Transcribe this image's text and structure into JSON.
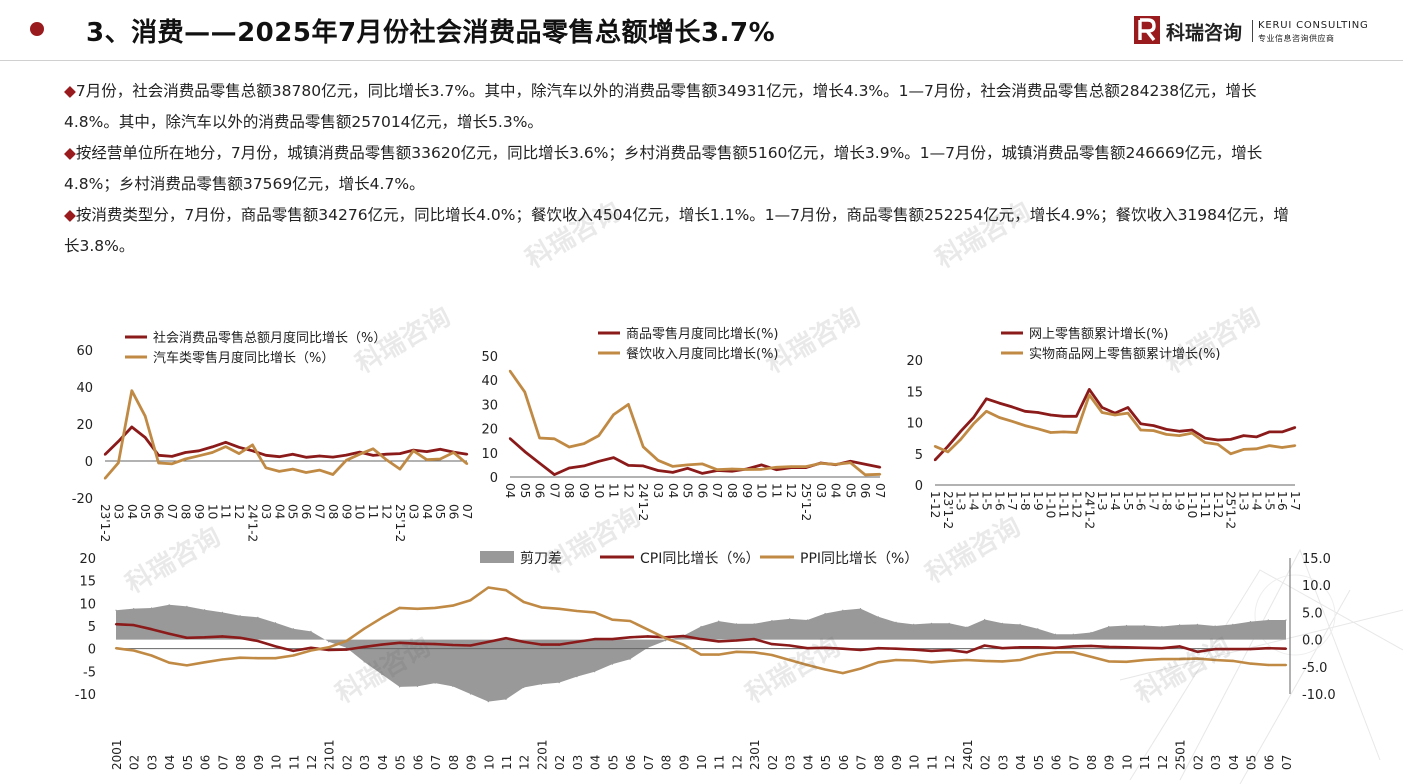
{
  "header": {
    "title": "3、消费——2025年7月份社会消费品零售总额增长3.7%",
    "brand_cn": "科瑞咨询",
    "brand_en": "KERUI CONSULTING",
    "brand_tagline": "专业信息咨询供应商",
    "accent_color": "#9a1b1e"
  },
  "watermark": {
    "text": "科瑞咨询"
  },
  "bullets": [
    {
      "marker": "◆",
      "text": "7月份，社会消费品零售总额38780亿元，同比增长3.7%。其中，除汽车以外的消费品零售额34931亿元，增长4.3%。1—7月份，社会消费品零售总额284238亿元，增长4.8%。其中，除汽车以外的消费品零售额257014亿元，增长5.3%。"
    },
    {
      "marker": "◆",
      "text": "按经营单位所在地分，7月份，城镇消费品零售额33620亿元，同比增长3.6%；乡村消费品零售额5160亿元，增长3.9%。1—7月份，城镇消费品零售额246669亿元，增长4.8%；乡村消费品零售额37569亿元，增长4.7%。"
    },
    {
      "marker": "◆",
      "text": "按消费类型分，7月份，商品零售额34276亿元，同比增长4.0%；餐饮收入4504亿元，增长1.1%。1—7月份，商品零售额252254亿元，增长4.9%；餐饮收入31984亿元，增长3.8%。"
    }
  ],
  "chart_data": [
    {
      "type": "line",
      "categories": [
        "23'1-2",
        "03",
        "04",
        "05",
        "06",
        "07",
        "08",
        "09",
        "10",
        "11",
        "12",
        "24'1-2",
        "03",
        "04",
        "05",
        "06",
        "07",
        "08",
        "09",
        "10",
        "11",
        "12",
        "25'1-2",
        "03",
        "04",
        "05",
        "06",
        "07"
      ],
      "series": [
        {
          "name": "社会消费品零售总额月度同比增长（%）",
          "color": "#8b1a1a",
          "values": [
            3.5,
            10.6,
            18.4,
            12.7,
            3.1,
            2.5,
            4.6,
            5.5,
            7.6,
            10.1,
            7.4,
            5.5,
            3.1,
            2.3,
            3.7,
            2.0,
            2.7,
            2.1,
            3.2,
            4.8,
            3.0,
            3.7,
            4.0,
            5.9,
            5.1,
            6.4,
            4.8,
            3.7
          ]
        },
        {
          "name": "汽车类零售月度同比增长（%）",
          "color": "#c08a45",
          "values": [
            -9.4,
            -1.0,
            38.0,
            24.2,
            -1.1,
            -1.5,
            1.1,
            2.8,
            4.6,
            7.8,
            4.0,
            8.7,
            -3.7,
            -5.6,
            -4.4,
            -6.2,
            -4.9,
            -7.3,
            0.4,
            3.7,
            6.6,
            0.6,
            -4.4,
            5.5,
            0.7,
            1.1,
            4.6,
            -1.5
          ]
        }
      ],
      "yticks": [
        "60",
        "40",
        "20",
        "0",
        "-20"
      ],
      "ylim": [
        -20,
        60
      ]
    },
    {
      "type": "line",
      "categories": [
        "04",
        "05",
        "06",
        "07",
        "08",
        "09",
        "10",
        "11",
        "12",
        "24'1-2",
        "03",
        "04",
        "05",
        "06",
        "07",
        "08",
        "09",
        "10",
        "11",
        "12",
        "25'1-2",
        "03",
        "04",
        "05",
        "06",
        "07"
      ],
      "series": [
        {
          "name": "商品零售月度同比增长(%)",
          "color": "#8b1a1a",
          "values": [
            15.9,
            10.5,
            5.7,
            1.0,
            3.7,
            4.6,
            6.5,
            8.0,
            4.8,
            4.6,
            2.7,
            1.9,
            3.6,
            1.5,
            2.7,
            2.4,
            3.3,
            5.0,
            3.0,
            3.9,
            3.9,
            5.8,
            5.1,
            6.5,
            5.3,
            4.0
          ]
        },
        {
          "name": "餐饮收入月度同比增长(%)",
          "color": "#c08a45",
          "values": [
            43.8,
            35.1,
            16.1,
            15.8,
            12.4,
            13.8,
            17.1,
            25.8,
            30.0,
            12.5,
            6.9,
            4.4,
            5.0,
            5.4,
            3.0,
            3.3,
            3.1,
            3.2,
            4.0,
            4.3,
            4.3,
            5.6,
            5.2,
            5.9,
            0.9,
            1.1
          ]
        }
      ],
      "yticks": [
        "50",
        "40",
        "30",
        "20",
        "10",
        "0"
      ],
      "ylim": [
        0,
        50
      ]
    },
    {
      "type": "line",
      "categories": [
        "1-12",
        "23'1-2",
        "1-3",
        "1-4",
        "1-5",
        "1-6",
        "1-7",
        "1-8",
        "1-9",
        "1-10",
        "1-11",
        "1-12",
        "24'1-2",
        "1-3",
        "1-4",
        "1-5",
        "1-6",
        "1-7",
        "1-8",
        "1-9",
        "1-10",
        "1-11",
        "1-12",
        "25'1-2",
        "1-3",
        "1-4",
        "1-5",
        "1-6",
        "1-7"
      ],
      "series": [
        {
          "name": "网上零售额累计增长(%)",
          "color": "#8b1a1a",
          "values": [
            4.0,
            6.2,
            8.6,
            10.8,
            13.8,
            13.1,
            12.5,
            11.8,
            11.6,
            11.2,
            11.0,
            11.0,
            15.3,
            12.4,
            11.5,
            12.4,
            9.8,
            9.5,
            8.9,
            8.6,
            8.8,
            7.5,
            7.2,
            7.3,
            7.9,
            7.7,
            8.5,
            8.5,
            9.2
          ]
        },
        {
          "name": "实物商品网上零售额累计增长(%)",
          "color": "#c08a45",
          "values": [
            6.2,
            5.3,
            7.3,
            9.8,
            11.8,
            10.8,
            10.2,
            9.5,
            9.0,
            8.4,
            8.5,
            8.4,
            14.4,
            11.6,
            11.2,
            11.5,
            8.8,
            8.7,
            8.1,
            7.9,
            8.3,
            6.8,
            6.5,
            5.0,
            5.7,
            5.8,
            6.3,
            6.0,
            6.3
          ]
        }
      ],
      "yticks": [
        "20",
        "15",
        "10",
        "5",
        "0"
      ],
      "ylim": [
        0,
        20
      ]
    },
    {
      "type": "line",
      "categories": [
        "2001",
        "02",
        "03",
        "04",
        "05",
        "06",
        "07",
        "08",
        "09",
        "10",
        "11",
        "12",
        "2101",
        "02",
        "03",
        "04",
        "05",
        "06",
        "07",
        "08",
        "09",
        "10",
        "11",
        "12",
        "2201",
        "02",
        "03",
        "04",
        "05",
        "06",
        "07",
        "08",
        "09",
        "10",
        "11",
        "12",
        "2301",
        "02",
        "03",
        "04",
        "05",
        "06",
        "07",
        "08",
        "09",
        "10",
        "11",
        "12",
        "2401",
        "02",
        "03",
        "04",
        "05",
        "06",
        "07",
        "08",
        "09",
        "10",
        "11",
        "12",
        "2501",
        "02",
        "03",
        "04",
        "05",
        "06",
        "07"
      ],
      "series": [
        {
          "name": "剪刀差",
          "color": "#999999",
          "kind": "area",
          "values": [
            5.4,
            5.7,
            5.8,
            6.4,
            6.1,
            5.5,
            5.0,
            4.4,
            4.1,
            3.1,
            2.0,
            1.5,
            -0.4,
            -1.5,
            -4.1,
            -6.4,
            -8.7,
            -8.6,
            -8.0,
            -8.6,
            -10.0,
            -11.4,
            -11.0,
            -8.8,
            -8.2,
            -7.9,
            -6.8,
            -5.9,
            -4.5,
            -3.6,
            -1.5,
            -0.2,
            0.7,
            2.4,
            3.4,
            2.9,
            2.9,
            3.5,
            3.8,
            3.6,
            4.8,
            5.4,
            5.7,
            4.2,
            3.2,
            2.8,
            3.0,
            3.0,
            2.3,
            3.7,
            3.0,
            2.8,
            2.0,
            1.0,
            1.0,
            1.3,
            2.4,
            2.6,
            2.6,
            2.4,
            2.7,
            2.8,
            2.5,
            2.8,
            3.3,
            3.6,
            3.6
          ]
        },
        {
          "name": "CPI同比增长（%）",
          "color": "#8b1a1a",
          "values": [
            5.4,
            5.2,
            4.3,
            3.3,
            2.4,
            2.5,
            2.7,
            2.4,
            1.7,
            0.5,
            -0.5,
            0.2,
            -0.3,
            -0.2,
            0.4,
            0.9,
            1.3,
            1.1,
            1.0,
            0.8,
            0.7,
            1.5,
            2.3,
            1.5,
            0.9,
            0.9,
            1.5,
            2.1,
            2.1,
            2.5,
            2.7,
            2.5,
            2.8,
            2.1,
            1.6,
            1.8,
            2.1,
            1.0,
            0.7,
            0.1,
            0.2,
            0.0,
            -0.3,
            0.1,
            0.0,
            -0.2,
            -0.5,
            -0.3,
            -0.8,
            0.7,
            0.1,
            0.3,
            0.3,
            0.2,
            0.5,
            0.6,
            0.4,
            0.3,
            0.2,
            0.1,
            0.5,
            -0.7,
            -0.1,
            -0.1,
            -0.1,
            0.1,
            0.0
          ]
        },
        {
          "name": "PPI同比增长（%）",
          "color": "#c08a45",
          "values": [
            0.1,
            -0.4,
            -1.5,
            -3.1,
            -3.7,
            -3.0,
            -2.4,
            -2.0,
            -2.1,
            -2.1,
            -1.5,
            -0.4,
            0.3,
            1.7,
            4.4,
            6.8,
            9.0,
            8.8,
            9.0,
            9.5,
            10.7,
            13.5,
            12.9,
            10.3,
            9.1,
            8.8,
            8.3,
            8.0,
            6.4,
            6.1,
            4.2,
            2.3,
            0.9,
            -1.3,
            -1.3,
            -0.7,
            -0.8,
            -1.4,
            -2.5,
            -3.6,
            -4.6,
            -5.4,
            -4.4,
            -3.0,
            -2.5,
            -2.6,
            -3.0,
            -2.7,
            -2.5,
            -2.7,
            -2.8,
            -2.5,
            -1.4,
            -0.8,
            -0.8,
            -1.8,
            -2.8,
            -2.9,
            -2.5,
            -2.3,
            -2.3,
            -2.2,
            -2.5,
            -2.7,
            -3.3,
            -3.6,
            -3.6
          ]
        }
      ],
      "yticks_left": [
        "20",
        "15",
        "10",
        "5",
        "0",
        "-5",
        "-10"
      ],
      "ylim_left": [
        -10,
        20
      ],
      "yticks_right": [
        "15.0",
        "10.0",
        "5.0",
        "0.0",
        "-5.0",
        "-10.0"
      ],
      "ylim_right": [
        -10,
        15
      ],
      "legend_placement": "top"
    }
  ]
}
